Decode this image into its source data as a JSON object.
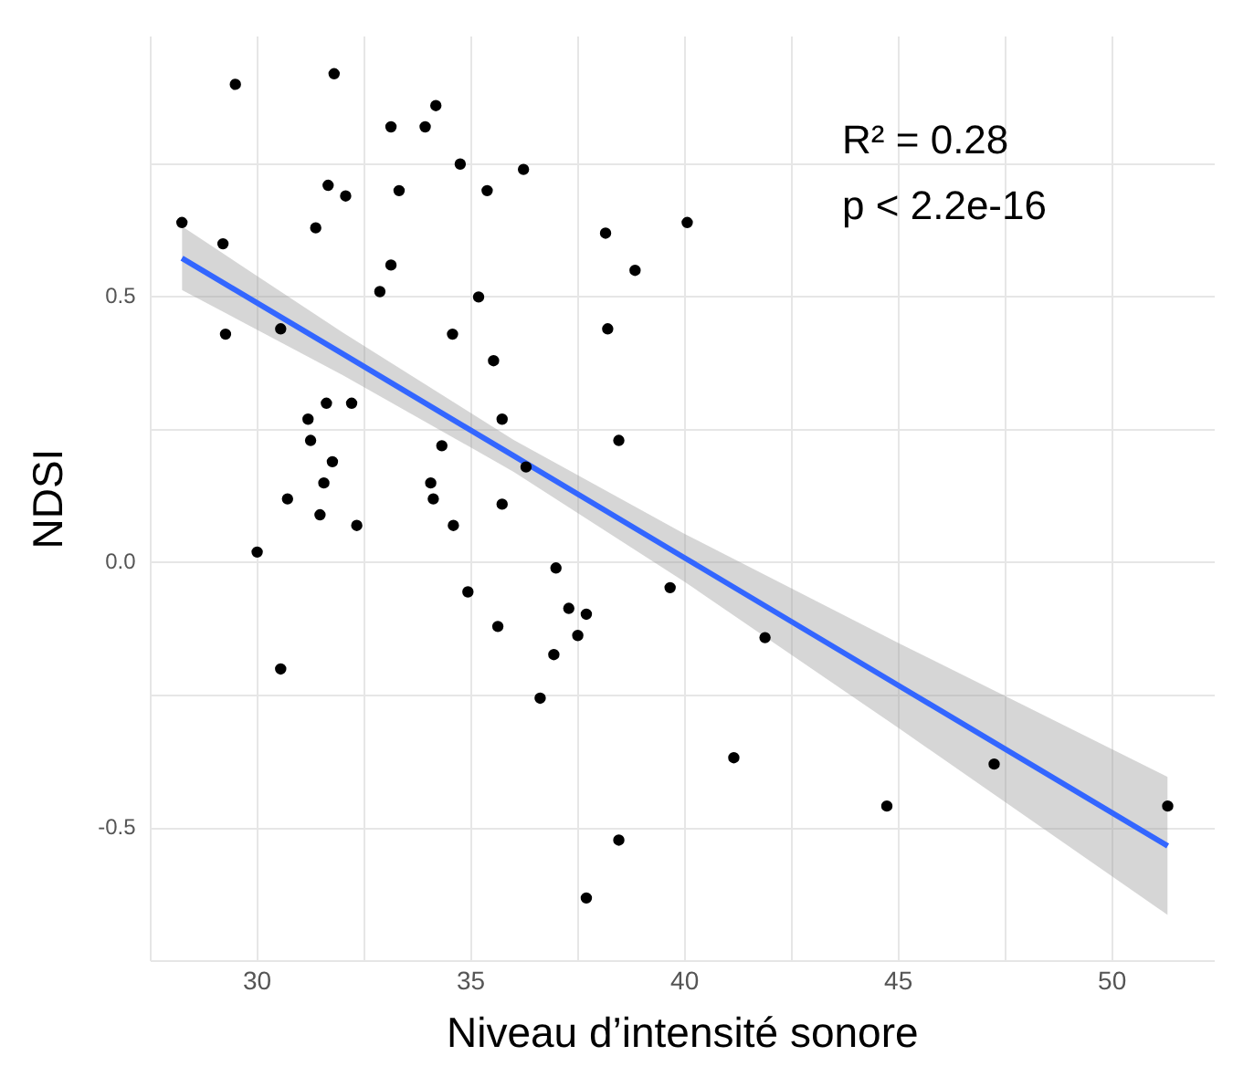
{
  "chart_data": {
    "type": "scatter",
    "xlabel": "Niveau d’intensité sonore",
    "ylabel": "NDSI",
    "xlim": [
      27.5,
      52.4
    ],
    "ylim": [
      -0.75,
      0.99
    ],
    "xticks": [
      {
        "value": 27.5,
        "label": null
      },
      30,
      {
        "value": 32.5,
        "label": null
      },
      35,
      {
        "value": 37.5,
        "label": null
      },
      40,
      {
        "value": 42.5,
        "label": null
      },
      45,
      {
        "value": 47.5,
        "label": null
      },
      50
    ],
    "yticks": [
      {
        "value": -0.75,
        "label": null
      },
      -0.5,
      {
        "value": -0.25,
        "label": null
      },
      {
        "value": 0,
        "label": "0.0"
      },
      {
        "value": 0.25,
        "label": null
      },
      0.5,
      {
        "value": 0.75,
        "label": null
      }
    ],
    "grid": true,
    "legend": false,
    "marker": "circle",
    "annotations": [
      "R² = 0.28",
      "p < 2.2e-16"
    ],
    "series": [
      {
        "color": "#000000",
        "x": [
          29.49,
          31.8,
          34.18,
          33.13,
          33.93,
          34.75,
          31.66,
          32.07,
          33.32,
          35.38,
          28.24,
          29.2,
          31.37,
          33.13,
          32.87,
          35.18,
          29.26,
          30.55,
          34.57,
          35.53,
          31.62,
          32.21,
          31.19,
          35.73,
          31.25,
          31.76,
          31.56,
          34.06,
          34.32,
          30.71,
          34.12,
          35.73,
          31.47,
          32.33,
          34.59,
          30.0,
          36.23,
          38.15,
          40.06,
          38.84,
          38.2,
          38.46,
          36.29,
          36.99,
          30.55,
          34.93,
          35.63,
          39.66,
          37.29,
          37.7,
          37.5,
          36.94,
          41.88,
          36.62,
          41.15,
          47.24,
          44.73,
          51.3,
          38.46,
          37.7
        ],
        "values": [
          0.9,
          0.92,
          0.86,
          0.82,
          0.82,
          0.75,
          0.71,
          0.69,
          0.7,
          0.7,
          0.64,
          0.6,
          0.63,
          0.56,
          0.51,
          0.5,
          0.43,
          0.44,
          0.43,
          0.38,
          0.3,
          0.3,
          0.27,
          0.27,
          0.23,
          0.19,
          0.15,
          0.15,
          0.22,
          0.12,
          0.12,
          0.11,
          0.09,
          0.07,
          0.07,
          0.02,
          0.74,
          0.62,
          0.64,
          0.55,
          0.44,
          0.23,
          0.18,
          -0.01,
          -0.2,
          -0.055,
          -0.12,
          -0.047,
          -0.086,
          -0.097,
          -0.137,
          -0.173,
          -0.141,
          -0.255,
          -0.367,
          -0.379,
          -0.458,
          -0.458,
          -0.522,
          -0.631
        ]
      },
      {
        "type": "line",
        "marker": "none",
        "color": "#3366ff",
        "x": [
          28.24,
          32,
          36,
          40,
          45,
          51.3
        ],
        "values": [
          0.573,
          0.393,
          0.201,
          0.009,
          -0.231,
          -0.533
        ],
        "lower": [
          0.513,
          0.353,
          0.171,
          -0.036,
          -0.311,
          -0.663
        ],
        "upper": [
          0.633,
          0.433,
          0.231,
          0.054,
          -0.151,
          -0.403
        ]
      }
    ]
  }
}
